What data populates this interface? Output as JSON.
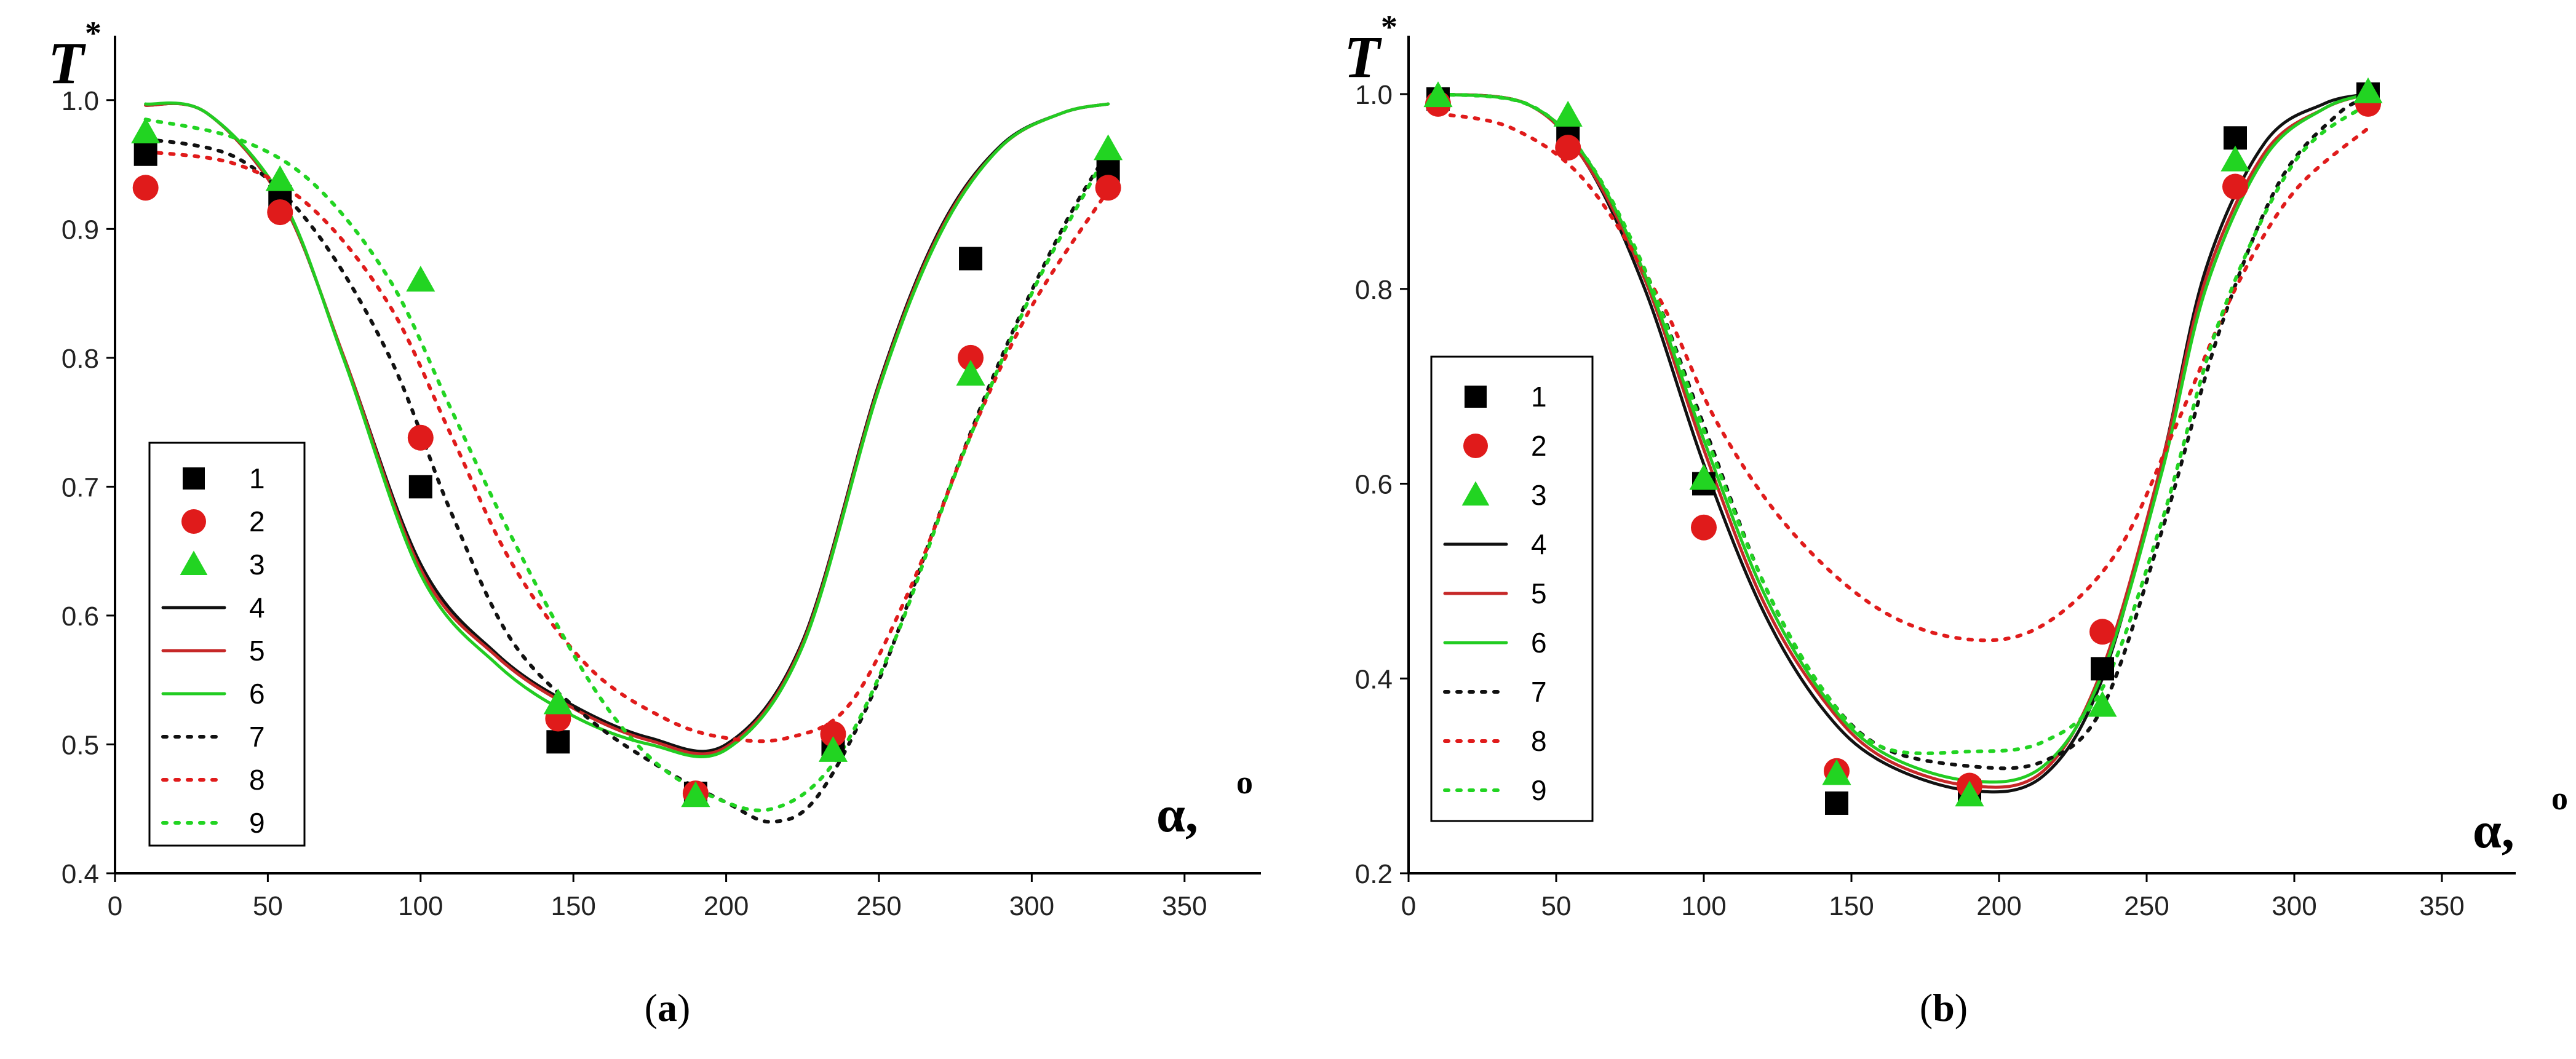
{
  "colors": {
    "black": "#000000",
    "red": "#e01b1b",
    "green": "#22d422",
    "fit_black": "#111111",
    "fit_red": "#c62828",
    "fit_green": "#22cc22"
  },
  "chart_data": [
    {
      "type": "scatter",
      "panel_label": "(a)",
      "panel_letter": "a",
      "ylabel": "T",
      "ylabel_sup": "*",
      "xlabel": "α,",
      "xlabel_sup": "o",
      "xlim": [
        0,
        375
      ],
      "ylim": [
        0.4,
        1.05
      ],
      "xticks": [
        0,
        50,
        100,
        150,
        200,
        250,
        300,
        350
      ],
      "yticks": [
        0.4,
        0.5,
        0.6,
        0.7,
        0.8,
        0.9,
        1.0
      ],
      "ytick_labels": [
        "0.4",
        "0.5",
        "0.6",
        "0.7",
        "0.8",
        "0.9",
        "1.0"
      ],
      "legend_position": "left-center",
      "series": [
        {
          "name": "1",
          "kind": "marker",
          "marker": "square",
          "color": "#000000",
          "x": [
            10,
            54,
            100,
            145,
            190,
            235,
            280,
            325
          ],
          "y": [
            0.958,
            0.925,
            0.7,
            0.502,
            0.462,
            0.5,
            0.877,
            0.945
          ]
        },
        {
          "name": "2",
          "kind": "marker",
          "marker": "circle",
          "color": "#e01b1b",
          "x": [
            10,
            54,
            100,
            145,
            190,
            235,
            280,
            325
          ],
          "y": [
            0.932,
            0.913,
            0.738,
            0.52,
            0.462,
            0.508,
            0.8,
            0.932
          ]
        },
        {
          "name": "3",
          "kind": "marker",
          "marker": "triangle",
          "color": "#22d422",
          "x": [
            10,
            54,
            100,
            145,
            190,
            235,
            280,
            325
          ],
          "y": [
            0.975,
            0.938,
            0.86,
            0.532,
            0.46,
            0.495,
            0.787,
            0.962
          ]
        },
        {
          "name": "4",
          "kind": "line",
          "dash": "solid",
          "color": "#111111",
          "x": [
            10,
            30,
            55,
            75,
            100,
            125,
            150,
            175,
            200,
            225,
            250,
            270,
            290,
            310,
            325
          ],
          "y": [
            0.996,
            0.99,
            0.92,
            0.8,
            0.64,
            0.57,
            0.53,
            0.505,
            0.5,
            0.58,
            0.78,
            0.9,
            0.965,
            0.99,
            0.997
          ]
        },
        {
          "name": "5",
          "kind": "line",
          "dash": "solid",
          "color": "#c62828",
          "x": [
            10,
            30,
            55,
            75,
            100,
            125,
            150,
            175,
            200,
            225,
            250,
            270,
            290,
            310,
            325
          ],
          "y": [
            0.996,
            0.99,
            0.92,
            0.8,
            0.636,
            0.568,
            0.528,
            0.503,
            0.498,
            0.578,
            0.778,
            0.898,
            0.964,
            0.99,
            0.997
          ]
        },
        {
          "name": "6",
          "kind": "line",
          "dash": "solid",
          "color": "#22cc22",
          "x": [
            10,
            30,
            55,
            75,
            100,
            125,
            150,
            175,
            200,
            225,
            250,
            270,
            290,
            310,
            325
          ],
          "y": [
            0.997,
            0.99,
            0.922,
            0.798,
            0.632,
            0.562,
            0.522,
            0.5,
            0.496,
            0.576,
            0.776,
            0.896,
            0.964,
            0.99,
            0.997
          ]
        },
        {
          "name": "7",
          "kind": "line",
          "dash": "dotted",
          "color": "#111111",
          "x": [
            10,
            40,
            65,
            90,
            110,
            130,
            155,
            180,
            200,
            215,
            230,
            250,
            270,
            290,
            310,
            325
          ],
          "y": [
            0.97,
            0.955,
            0.9,
            0.8,
            0.68,
            0.58,
            0.52,
            0.48,
            0.455,
            0.44,
            0.46,
            0.55,
            0.68,
            0.8,
            0.9,
            0.96
          ]
        },
        {
          "name": "8",
          "kind": "line",
          "dash": "dotted",
          "color": "#e01b1b",
          "x": [
            10,
            40,
            65,
            90,
            110,
            130,
            155,
            180,
            200,
            220,
            240,
            260,
            280,
            300,
            325
          ],
          "y": [
            0.96,
            0.95,
            0.915,
            0.84,
            0.74,
            0.64,
            0.56,
            0.52,
            0.505,
            0.505,
            0.53,
            0.62,
            0.74,
            0.84,
            0.93
          ]
        },
        {
          "name": "9",
          "kind": "line",
          "dash": "dotted",
          "color": "#22d422",
          "x": [
            10,
            40,
            65,
            90,
            110,
            130,
            155,
            175,
            195,
            215,
            235,
            255,
            275,
            300,
            325
          ],
          "y": [
            0.985,
            0.97,
            0.935,
            0.86,
            0.76,
            0.66,
            0.55,
            0.49,
            0.46,
            0.45,
            0.485,
            0.58,
            0.71,
            0.85,
            0.96
          ]
        }
      ]
    },
    {
      "type": "scatter",
      "panel_label": "(b)",
      "panel_letter": "b",
      "ylabel": "T",
      "ylabel_sup": "*",
      "xlabel": "α,",
      "xlabel_sup": "o",
      "xlim": [
        0,
        375
      ],
      "ylim": [
        0.2,
        1.06
      ],
      "xticks": [
        0,
        50,
        100,
        150,
        200,
        250,
        300,
        350
      ],
      "yticks": [
        0.2,
        0.4,
        0.6,
        0.8,
        1.0
      ],
      "ytick_labels": [
        "0.2",
        "0.4",
        "0.6",
        "0.8",
        "1.0"
      ],
      "legend_position": "left-center",
      "series": [
        {
          "name": "1",
          "kind": "marker",
          "marker": "square",
          "color": "#000000",
          "x": [
            10,
            54,
            100,
            145,
            190,
            235,
            280,
            325
          ],
          "y": [
            0.995,
            0.96,
            0.6,
            0.272,
            0.285,
            0.41,
            0.955,
            1.0
          ]
        },
        {
          "name": "2",
          "kind": "marker",
          "marker": "circle",
          "color": "#e01b1b",
          "x": [
            10,
            54,
            100,
            145,
            190,
            235,
            280,
            325
          ],
          "y": [
            0.99,
            0.945,
            0.555,
            0.305,
            0.29,
            0.448,
            0.905,
            0.99
          ]
        },
        {
          "name": "3",
          "kind": "marker",
          "marker": "triangle",
          "color": "#22d422",
          "x": [
            10,
            54,
            100,
            145,
            190,
            235,
            280,
            325
          ],
          "y": [
            0.998,
            0.978,
            0.605,
            0.302,
            0.28,
            0.372,
            0.932,
            1.002
          ]
        },
        {
          "name": "4",
          "kind": "line",
          "dash": "solid",
          "color": "#111111",
          "x": [
            10,
            40,
            60,
            80,
            100,
            120,
            140,
            160,
            190,
            215,
            235,
            255,
            270,
            290,
            310,
            325
          ],
          "y": [
            1.0,
            0.99,
            0.93,
            0.8,
            0.62,
            0.47,
            0.37,
            0.315,
            0.285,
            0.3,
            0.4,
            0.62,
            0.82,
            0.95,
            0.99,
            1.0
          ]
        },
        {
          "name": "5",
          "kind": "line",
          "dash": "solid",
          "color": "#c62828",
          "x": [
            10,
            40,
            60,
            80,
            100,
            120,
            140,
            160,
            190,
            215,
            235,
            255,
            270,
            290,
            310,
            325
          ],
          "y": [
            1.0,
            0.99,
            0.93,
            0.81,
            0.635,
            0.48,
            0.38,
            0.32,
            0.29,
            0.305,
            0.41,
            0.62,
            0.81,
            0.94,
            0.985,
            1.0
          ]
        },
        {
          "name": "6",
          "kind": "line",
          "dash": "solid",
          "color": "#22cc22",
          "x": [
            10,
            40,
            60,
            80,
            100,
            120,
            140,
            160,
            190,
            215,
            235,
            255,
            270,
            290,
            310,
            325
          ],
          "y": [
            1.0,
            0.99,
            0.935,
            0.815,
            0.645,
            0.49,
            0.385,
            0.325,
            0.295,
            0.31,
            0.405,
            0.61,
            0.8,
            0.935,
            0.985,
            1.0
          ]
        },
        {
          "name": "7",
          "kind": "line",
          "dash": "dotted",
          "color": "#111111",
          "x": [
            10,
            40,
            60,
            80,
            100,
            120,
            140,
            160,
            190,
            215,
            235,
            255,
            275,
            295,
            315,
            325
          ],
          "y": [
            1.0,
            0.99,
            0.935,
            0.82,
            0.66,
            0.5,
            0.39,
            0.33,
            0.31,
            0.315,
            0.37,
            0.55,
            0.76,
            0.91,
            0.98,
            0.995
          ]
        },
        {
          "name": "8",
          "kind": "line",
          "dash": "dotted",
          "color": "#e01b1b",
          "x": [
            10,
            35,
            60,
            85,
            105,
            130,
            160,
            190,
            215,
            240,
            260,
            280,
            300,
            325
          ],
          "y": [
            0.98,
            0.965,
            0.91,
            0.79,
            0.66,
            0.55,
            0.47,
            0.44,
            0.455,
            0.53,
            0.66,
            0.8,
            0.9,
            0.965
          ]
        },
        {
          "name": "9",
          "kind": "line",
          "dash": "dotted",
          "color": "#22d422",
          "x": [
            10,
            40,
            60,
            80,
            100,
            120,
            140,
            160,
            190,
            215,
            235,
            255,
            275,
            300,
            325
          ],
          "y": [
            1.0,
            0.99,
            0.935,
            0.82,
            0.655,
            0.5,
            0.39,
            0.33,
            0.325,
            0.335,
            0.39,
            0.56,
            0.77,
            0.93,
            0.99
          ]
        }
      ]
    }
  ]
}
